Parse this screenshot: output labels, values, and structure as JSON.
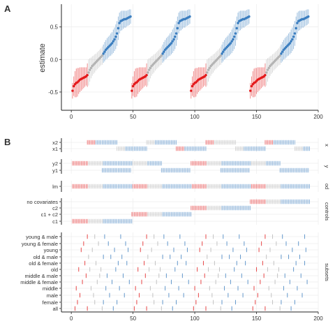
{
  "panel_labels": {
    "a": "A",
    "b": "B"
  },
  "colors": {
    "red": "#e41a1c",
    "grey": "#b4b4b4",
    "blue": "#3d7fc0"
  },
  "chart_data": [
    {
      "type": "scatter",
      "panel": "A",
      "ylabel": "estimate",
      "xlabel": "",
      "xlim": [
        -8,
        200
      ],
      "ylim": [
        -0.78,
        0.85
      ],
      "x_ticks": [
        0,
        50,
        100,
        150,
        200
      ],
      "x_tick_labels": [
        "0",
        "50",
        "100",
        "150",
        "200"
      ],
      "y_ticks": [
        -0.5,
        0.0,
        0.5
      ],
      "y_tick_labels": [
        "-0.5",
        "0.0",
        "0.5"
      ],
      "grid": true,
      "error_bars": "vertical",
      "blocks": [
        {
          "x_start": 1,
          "count": 48
        },
        {
          "x_start": 49,
          "count": 48
        },
        {
          "x_start": 97,
          "count": 48
        },
        {
          "x_start": 145,
          "count": 48
        }
      ],
      "estimate_pattern": [
        -0.48,
        -0.41,
        -0.38,
        -0.36,
        -0.35,
        -0.33,
        -0.31,
        -0.3,
        -0.29,
        -0.28,
        -0.27,
        -0.26,
        -0.24,
        -0.2,
        -0.16,
        -0.13,
        -0.1,
        -0.08,
        -0.06,
        -0.04,
        -0.02,
        0.0,
        0.02,
        0.04,
        0.06,
        0.09,
        0.12,
        0.15,
        0.17,
        0.19,
        0.21,
        0.23,
        0.25,
        0.28,
        0.31,
        0.35,
        0.4,
        0.48,
        0.56,
        0.59,
        0.6,
        0.61,
        0.62,
        0.62,
        0.63,
        0.64,
        0.65,
        0.66
      ],
      "error_half_width_pattern": [
        0.12,
        0.15,
        0.2,
        0.22,
        0.22,
        0.2,
        0.19,
        0.18,
        0.17,
        0.16,
        0.15,
        0.14,
        0.18,
        0.2,
        0.18,
        0.16,
        0.15,
        0.14,
        0.14,
        0.13,
        0.13,
        0.13,
        0.13,
        0.13,
        0.14,
        0.14,
        0.15,
        0.15,
        0.16,
        0.16,
        0.16,
        0.17,
        0.17,
        0.18,
        0.18,
        0.19,
        0.19,
        0.18,
        0.16,
        0.15,
        0.15,
        0.14,
        0.13,
        0.13,
        0.12,
        0.12,
        0.12,
        0.11
      ],
      "color_pattern": [
        "red",
        "red",
        "red",
        "red",
        "red",
        "red",
        "red",
        "red",
        "red",
        "red",
        "red",
        "red",
        "red",
        "grey",
        "grey",
        "grey",
        "grey",
        "grey",
        "grey",
        "grey",
        "grey",
        "grey",
        "grey",
        "grey",
        "grey",
        "blue",
        "blue",
        "blue",
        "blue",
        "blue",
        "blue",
        "blue",
        "blue",
        "blue",
        "blue",
        "blue",
        "blue",
        "blue",
        "blue",
        "blue",
        "blue",
        "blue",
        "blue",
        "blue",
        "blue",
        "blue",
        "blue",
        "blue"
      ]
    },
    {
      "type": "heatmap",
      "panel": "B",
      "xlim": [
        -8,
        200
      ],
      "x_ticks": [
        0,
        50,
        100,
        150,
        200
      ],
      "x_tick_labels": [
        "0",
        "50",
        "100",
        "150",
        "200"
      ],
      "groups": [
        {
          "name": "x",
          "rows": [
            {
              "label": "x2",
              "segments": [
                [
                  13,
                  19,
                  "red"
                ],
                [
                  20,
                  37,
                  "blue"
                ],
                [
                  61,
                  67,
                  "grey"
                ],
                [
                  68,
                  85,
                  "blue"
                ],
                [
                  109,
                  115,
                  "red"
                ],
                [
                  116,
                  133,
                  "grey"
                ],
                [
                  157,
                  163,
                  "red"
                ],
                [
                  164,
                  181,
                  "blue"
                ]
              ]
            },
            {
              "label": "x1",
              "segments": [
                [
                  37,
                  43,
                  "grey"
                ],
                [
                  44,
                  61,
                  "blue"
                ],
                [
                  85,
                  91,
                  "red"
                ],
                [
                  92,
                  109,
                  "blue"
                ],
                [
                  133,
                  139,
                  "grey"
                ],
                [
                  140,
                  157,
                  "blue"
                ],
                [
                  181,
                  187,
                  "grey"
                ],
                [
                  188,
                  193,
                  "blue"
                ]
              ]
            }
          ]
        },
        {
          "name": "y",
          "rows": [
            {
              "label": "y2",
              "segments": [
                [
                  1,
                  13,
                  "red"
                ],
                [
                  14,
                  25,
                  "grey"
                ],
                [
                  26,
                  49,
                  "blue"
                ],
                [
                  50,
                  61,
                  "grey"
                ],
                [
                  62,
                  73,
                  "blue"
                ],
                [
                  97,
                  109,
                  "red"
                ],
                [
                  110,
                  121,
                  "grey"
                ],
                [
                  122,
                  145,
                  "blue"
                ],
                [
                  146,
                  157,
                  "grey"
                ],
                [
                  158,
                  169,
                  "blue"
                ]
              ]
            },
            {
              "label": "y1",
              "segments": [
                [
                  25,
                  48,
                  "blue"
                ],
                [
                  73,
                  96,
                  "blue"
                ],
                [
                  121,
                  144,
                  "blue"
                ],
                [
                  169,
                  192,
                  "blue"
                ]
              ]
            }
          ]
        },
        {
          "name": "od",
          "rows": [
            {
              "label": "lm",
              "segments": [
                [
                  1,
                  13,
                  "red"
                ],
                [
                  14,
                  25,
                  "grey"
                ],
                [
                  26,
                  49,
                  "blue"
                ],
                [
                  50,
                  61,
                  "red"
                ],
                [
                  62,
                  73,
                  "grey"
                ],
                [
                  74,
                  97,
                  "blue"
                ],
                [
                  98,
                  109,
                  "red"
                ],
                [
                  110,
                  121,
                  "grey"
                ],
                [
                  122,
                  145,
                  "blue"
                ],
                [
                  146,
                  157,
                  "red"
                ],
                [
                  158,
                  169,
                  "grey"
                ],
                [
                  170,
                  193,
                  "blue"
                ]
              ]
            }
          ]
        },
        {
          "name": "controls",
          "rows": [
            {
              "label": "no covariates",
              "segments": [
                [
                  145,
                  157,
                  "red"
                ],
                [
                  158,
                  169,
                  "grey"
                ],
                [
                  170,
                  193,
                  "blue"
                ]
              ]
            },
            {
              "label": "c2",
              "segments": [
                [
                  97,
                  109,
                  "red"
                ],
                [
                  110,
                  121,
                  "grey"
                ],
                [
                  122,
                  145,
                  "blue"
                ]
              ]
            },
            {
              "label": "c1 + c2",
              "segments": [
                [
                  49,
                  61,
                  "red"
                ],
                [
                  62,
                  73,
                  "grey"
                ],
                [
                  74,
                  97,
                  "blue"
                ]
              ]
            },
            {
              "label": "c1",
              "segments": [
                [
                  1,
                  13,
                  "red"
                ],
                [
                  14,
                  25,
                  "grey"
                ],
                [
                  26,
                  49,
                  "blue"
                ]
              ]
            }
          ]
        },
        {
          "name": "subsets",
          "rows": [
            {
              "label": "young & male",
              "ticks": [
                13,
                19,
                27,
                40,
                61,
                67,
                75,
                88,
                109,
                115,
                123,
                136,
                157,
                163,
                171,
                189
              ]
            },
            {
              "label": "young & female",
              "ticks": [
                10,
                22,
                30,
                44,
                58,
                70,
                78,
                92,
                106,
                118,
                126,
                140,
                154,
                166,
                174,
                184
              ]
            },
            {
              "label": "young",
              "ticks": [
                8,
                17,
                35,
                46,
                56,
                65,
                83,
                94,
                104,
                113,
                131,
                142,
                152,
                161,
                179,
                190
              ]
            },
            {
              "label": "old & male",
              "ticks": [
                14,
                26,
                32,
                41,
                62,
                74,
                80,
                89,
                110,
                122,
                128,
                137,
                158,
                170,
                176,
                185
              ]
            },
            {
              "label": "old & female",
              "ticks": [
                11,
                20,
                38,
                45,
                59,
                68,
                86,
                93,
                107,
                116,
                134,
                141,
                155,
                164,
                182,
                189
              ]
            },
            {
              "label": "old",
              "ticks": [
                6,
                15,
                24,
                36,
                54,
                63,
                72,
                84,
                102,
                111,
                120,
                132,
                150,
                159,
                168,
                180
              ]
            },
            {
              "label": "middle & male",
              "ticks": [
                12,
                23,
                29,
                42,
                60,
                71,
                77,
                90,
                108,
                119,
                125,
                138,
                156,
                167,
                173,
                186
              ]
            },
            {
              "label": "middle & female",
              "ticks": [
                9,
                21,
                33,
                47,
                57,
                69,
                81,
                95,
                105,
                117,
                129,
                143,
                153,
                165,
                177,
                191
              ]
            },
            {
              "label": "middle",
              "ticks": [
                4,
                16,
                28,
                39,
                52,
                64,
                76,
                87,
                100,
                112,
                124,
                135,
                148,
                160,
                172,
                183
              ]
            },
            {
              "label": "male",
              "ticks": [
                7,
                18,
                31,
                43,
                55,
                66,
                79,
                91,
                103,
                114,
                127,
                139,
                151,
                162,
                175,
                187
              ]
            },
            {
              "label": "female",
              "ticks": [
                5,
                19,
                26,
                37,
                53,
                67,
                74,
                85,
                101,
                115,
                122,
                133,
                149,
                163,
                170,
                181
              ]
            },
            {
              "label": "all",
              "ticks": [
                3,
                13,
                25,
                34,
                51,
                61,
                73,
                82,
                99,
                109,
                121,
                130,
                147,
                157,
                169,
                178
              ]
            }
          ]
        }
      ]
    }
  ]
}
